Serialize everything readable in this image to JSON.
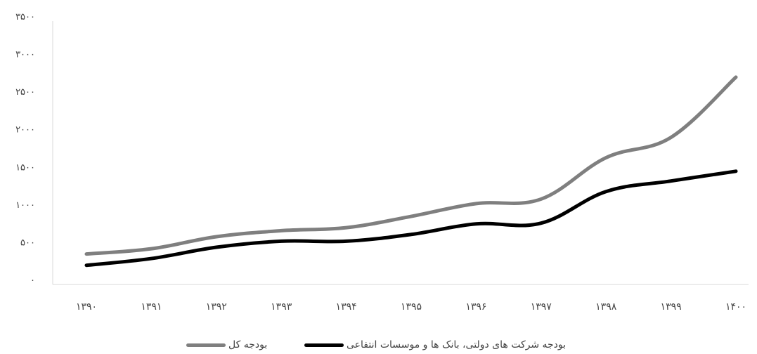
{
  "chart_data": {
    "type": "line",
    "categories": [
      "۱۳۹۰",
      "۱۳۹۱",
      "۱۳۹۲",
      "۱۳۹۳",
      "۱۳۹۴",
      "۱۳۹۵",
      "۱۳۹۶",
      "۱۳۹۷",
      "۱۳۹۸",
      "۱۳۹۹",
      "۱۴۰۰"
    ],
    "y_tick_labels": [
      "۰",
      "۵۰۰",
      "۱۰۰۰",
      "۱۵۰۰",
      "۲۰۰۰",
      "۲۵۰۰",
      "۳۰۰۰",
      "۳۵۰۰"
    ],
    "ylim": [
      0,
      3500
    ],
    "series": [
      {
        "name": "بودجه کل",
        "color": "#7f7f7f",
        "values": [
          470,
          540,
          700,
          780,
          820,
          970,
          1140,
          1200,
          1750,
          2020,
          2820
        ]
      },
      {
        "name": "بودجه شرکت های دولتی، بانک ها و موسسات انتفاعی",
        "color": "#000000",
        "values": [
          320,
          410,
          560,
          640,
          640,
          730,
          870,
          880,
          1300,
          1440,
          1570
        ]
      }
    ],
    "title": "",
    "xlabel": "",
    "ylabel": "",
    "grid": false,
    "legend_position": "bottom"
  }
}
